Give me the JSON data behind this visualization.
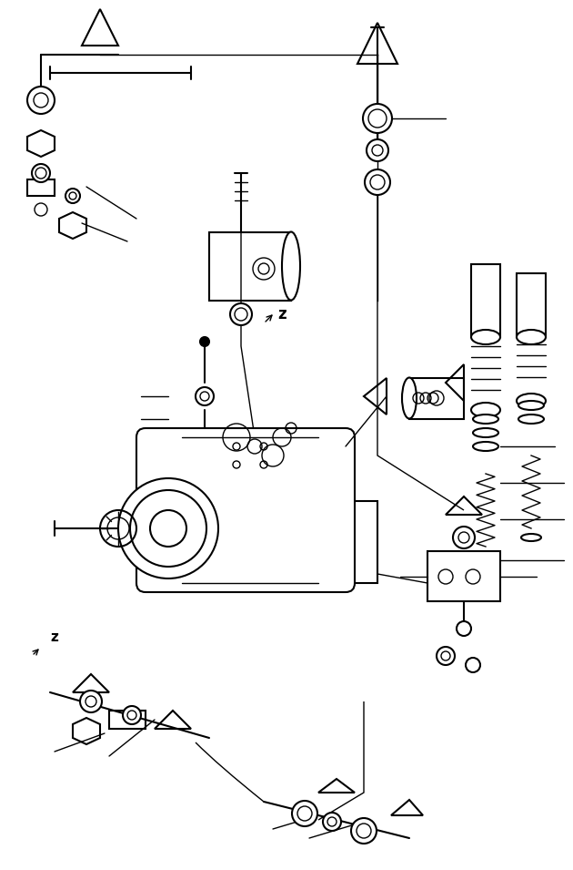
{
  "bg_color": "#ffffff",
  "line_color": "#000000",
  "fig_width": 6.3,
  "fig_height": 9.55,
  "dpi": 100,
  "title": ""
}
